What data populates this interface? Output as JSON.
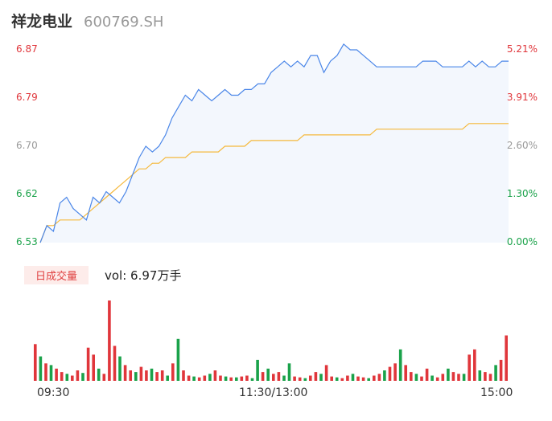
{
  "header": {
    "stock_name": "祥龙电业",
    "stock_code": "600769.SH"
  },
  "colors": {
    "price_line": "#4a86e8",
    "avg_line": "#f5b93d",
    "up": "#e0363b",
    "down": "#1aa24a",
    "flat": "#999999"
  },
  "volume_panel": {
    "tab_label": "日成交量",
    "vol_text": "vol: 6.97万手"
  },
  "chart_data": {
    "type": "line",
    "prev_close": 6.53,
    "y_left_ticks": [
      "6.87",
      "6.79",
      "6.70",
      "6.62",
      "6.53"
    ],
    "y_right_ticks": [
      "5.21%",
      "3.91%",
      "2.60%",
      "1.30%",
      "0.00%"
    ],
    "ylim": [
      6.53,
      6.87
    ],
    "x_ticks": [
      "09:30",
      "11:30/13:00",
      "15:00"
    ],
    "series": [
      {
        "values": [
          6.53,
          6.56,
          6.55,
          6.6,
          6.61,
          6.59,
          6.58,
          6.57,
          6.61,
          6.6,
          6.62,
          6.61,
          6.6,
          6.62,
          6.65,
          6.68,
          6.7,
          6.69,
          6.7,
          6.72,
          6.75,
          6.77,
          6.79,
          6.78,
          6.8,
          6.79,
          6.78,
          6.79,
          6.8,
          6.79,
          6.79,
          6.8,
          6.8,
          6.81,
          6.81,
          6.83,
          6.84,
          6.85,
          6.84,
          6.85,
          6.84,
          6.86,
          6.86,
          6.83,
          6.85,
          6.86,
          6.88,
          6.87,
          6.87,
          6.86,
          6.85,
          6.84,
          6.84,
          6.84,
          6.84,
          6.84,
          6.84,
          6.84,
          6.85,
          6.85,
          6.85,
          6.84,
          6.84,
          6.84,
          6.84,
          6.85,
          6.84,
          6.85,
          6.84,
          6.84,
          6.85,
          6.85
        ]
      },
      {
        "values": [
          6.53,
          6.56,
          6.56,
          6.57,
          6.57,
          6.57,
          6.57,
          6.58,
          6.59,
          6.6,
          6.61,
          6.62,
          6.63,
          6.64,
          6.65,
          6.66,
          6.66,
          6.67,
          6.67,
          6.68,
          6.68,
          6.68,
          6.68,
          6.69,
          6.69,
          6.69,
          6.69,
          6.69,
          6.7,
          6.7,
          6.7,
          6.7,
          6.71,
          6.71,
          6.71,
          6.71,
          6.71,
          6.71,
          6.71,
          6.71,
          6.72,
          6.72,
          6.72,
          6.72,
          6.72,
          6.72,
          6.72,
          6.72,
          6.72,
          6.72,
          6.72,
          6.73,
          6.73,
          6.73,
          6.73,
          6.73,
          6.73,
          6.73,
          6.73,
          6.73,
          6.73,
          6.73,
          6.73,
          6.73,
          6.73,
          6.74,
          6.74,
          6.74,
          6.74,
          6.74,
          6.74,
          6.74
        ]
      }
    ],
    "volume": [
      42,
      28,
      20,
      18,
      14,
      10,
      8,
      6,
      12,
      9,
      38,
      30,
      14,
      8,
      92,
      40,
      28,
      18,
      12,
      10,
      16,
      12,
      14,
      10,
      12,
      6,
      20,
      48,
      12,
      6,
      5,
      4,
      6,
      8,
      12,
      6,
      5,
      4,
      4,
      5,
      6,
      3,
      24,
      10,
      14,
      8,
      10,
      6,
      20,
      5,
      4,
      3,
      6,
      10,
      8,
      18,
      5,
      4,
      3,
      6,
      8,
      5,
      4,
      3,
      6,
      8,
      12,
      16,
      20,
      36,
      18,
      10,
      8,
      5,
      14,
      6,
      4,
      8,
      14,
      10,
      8,
      8,
      30,
      36,
      12,
      10,
      8,
      18,
      24,
      52
    ],
    "volume_up": [
      1,
      0,
      1,
      0,
      1,
      1,
      0,
      1,
      1,
      0,
      1,
      1,
      0,
      1,
      1,
      1,
      0,
      1,
      1,
      0,
      1,
      1,
      0,
      1,
      1,
      0,
      1,
      0,
      1,
      1,
      0,
      1,
      1,
      0,
      1,
      1,
      0,
      1,
      0,
      1,
      1,
      0,
      0,
      1,
      0,
      1,
      1,
      0,
      0,
      1,
      1,
      0,
      1,
      1,
      0,
      1,
      1,
      0,
      1,
      1,
      0,
      1,
      1,
      0,
      1,
      1,
      0,
      1,
      1,
      0,
      1,
      1,
      0,
      1,
      1,
      0,
      1,
      1,
      0,
      1,
      1,
      0,
      1,
      1,
      0,
      1,
      1,
      0,
      1,
      1
    ]
  }
}
